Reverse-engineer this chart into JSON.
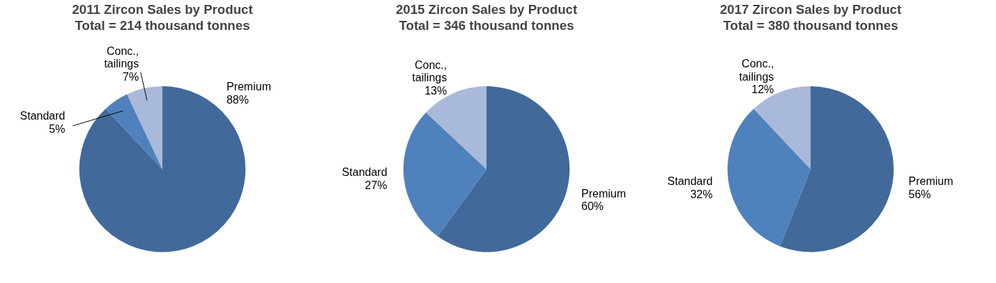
{
  "chart_data": [
    {
      "type": "pie",
      "title": "2011 Zircon Sales by Product",
      "subtitle": "Total = 214 thousand tonnes",
      "categories": [
        "Premium",
        "Standard",
        "Conc., tailings"
      ],
      "values": [
        88,
        5,
        7
      ],
      "value_labels": [
        "88%",
        "5%",
        "7%"
      ],
      "colors": [
        "#416a9b",
        "#4f81bd",
        "#a9b9d9"
      ],
      "legend": false
    },
    {
      "type": "pie",
      "title": "2015 Zircon Sales by Product",
      "subtitle": "Total = 346 thousand tonnes",
      "categories": [
        "Premium",
        "Standard",
        "Conc., tailings"
      ],
      "values": [
        60,
        27,
        13
      ],
      "value_labels": [
        "60%",
        "27%",
        "13%"
      ],
      "colors": [
        "#416a9b",
        "#4f81bd",
        "#a9b9d9"
      ],
      "legend": false
    },
    {
      "type": "pie",
      "title": "2017 Zircon Sales by Product",
      "subtitle": "Total = 380 thousand tonnes",
      "categories": [
        "Premium",
        "Standard",
        "Conc., tailings"
      ],
      "values": [
        56,
        32,
        12
      ],
      "value_labels": [
        "56%",
        "32%",
        "12%"
      ],
      "colors": [
        "#416a9b",
        "#4f81bd",
        "#a9b9d9"
      ],
      "legend": false
    }
  ]
}
